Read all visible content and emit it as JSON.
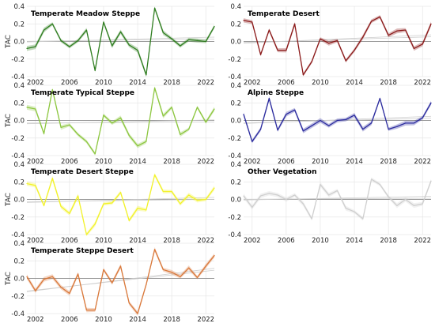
{
  "chart_data": [
    {
      "type": "line",
      "title": "Temperate Meadow Steppe",
      "ylabel": "TAC",
      "color": "#2e7d1f",
      "x": [
        2001,
        2002,
        2003,
        2004,
        2005,
        2006,
        2007,
        2008,
        2009,
        2010,
        2011,
        2012,
        2013,
        2014,
        2015,
        2016,
        2017,
        2018,
        2019,
        2020,
        2021,
        2022,
        2023
      ],
      "values": [
        -0.08,
        -0.06,
        0.13,
        0.2,
        0.01,
        -0.06,
        0.01,
        0.13,
        -0.33,
        0.22,
        -0.05,
        0.11,
        -0.04,
        -0.1,
        -0.38,
        0.38,
        0.1,
        0.03,
        -0.05,
        0.02,
        0.01,
        0.0,
        0.17
      ],
      "xlim": [
        2001,
        2023
      ],
      "ylim": [
        -0.4,
        0.4
      ],
      "xticks": [
        "2002",
        "2006",
        "2010",
        "2014",
        "2018",
        "2022"
      ],
      "yticks": [
        "0.4",
        "0.2",
        "0.0",
        "-0.2",
        "-0.4"
      ],
      "grid": true
    },
    {
      "type": "line",
      "title": "Temperate Desert",
      "ylabel": "",
      "color": "#8b1a1a",
      "x": [
        2001,
        2002,
        2003,
        2004,
        2005,
        2006,
        2007,
        2008,
        2009,
        2010,
        2011,
        2012,
        2013,
        2014,
        2015,
        2016,
        2017,
        2018,
        2019,
        2020,
        2021,
        2022,
        2023
      ],
      "values": [
        0.24,
        0.22,
        -0.15,
        0.13,
        -0.1,
        -0.1,
        0.2,
        -0.38,
        -0.23,
        0.03,
        -0.02,
        0.01,
        -0.22,
        -0.1,
        0.05,
        0.23,
        0.28,
        0.07,
        0.12,
        0.13,
        -0.08,
        -0.03,
        0.2
      ],
      "xlim": [
        2001,
        2023
      ],
      "ylim": [
        -0.4,
        0.4
      ],
      "xticks": [
        "2002",
        "2006",
        "2010",
        "2014",
        "2018",
        "2022"
      ],
      "yticks": [
        "0.4",
        "0.2",
        "0.0",
        "-0.2",
        "-0.4"
      ],
      "grid": true
    },
    {
      "type": "line",
      "title": "Temperate Typical Steppe",
      "ylabel": "TAC",
      "color": "#8cc63f",
      "x": [
        2001,
        2002,
        2003,
        2004,
        2005,
        2006,
        2007,
        2008,
        2009,
        2010,
        2011,
        2012,
        2013,
        2014,
        2015,
        2016,
        2017,
        2018,
        2019,
        2020,
        2021,
        2022,
        2023
      ],
      "values": [
        0.15,
        0.13,
        -0.15,
        0.35,
        -0.08,
        -0.05,
        -0.16,
        -0.24,
        -0.38,
        0.06,
        -0.03,
        0.03,
        -0.17,
        -0.29,
        -0.24,
        0.37,
        0.05,
        0.15,
        -0.16,
        -0.1,
        0.15,
        -0.02,
        0.13
      ],
      "xlim": [
        2001,
        2023
      ],
      "ylim": [
        -0.4,
        0.4
      ],
      "xticks": [
        "2002",
        "2006",
        "2010",
        "2014",
        "2018",
        "2022"
      ],
      "yticks": [
        "0.4",
        "0.2",
        "0.0",
        "-0.2",
        "-0.4"
      ],
      "grid": true
    },
    {
      "type": "line",
      "title": "Alpine Steppe",
      "ylabel": "",
      "color": "#2b2b9e",
      "x": [
        2001,
        2002,
        2003,
        2004,
        2005,
        2006,
        2007,
        2008,
        2009,
        2010,
        2011,
        2012,
        2013,
        2014,
        2015,
        2016,
        2017,
        2018,
        2019,
        2020,
        2021,
        2022,
        2023
      ],
      "values": [
        0.07,
        -0.24,
        -0.1,
        0.25,
        -0.11,
        0.07,
        0.12,
        -0.12,
        -0.06,
        0.0,
        -0.06,
        0.0,
        0.01,
        0.06,
        -0.1,
        -0.03,
        0.25,
        -0.1,
        -0.07,
        -0.03,
        -0.03,
        0.03,
        0.2
      ],
      "xlim": [
        2001,
        2023
      ],
      "ylim": [
        -0.4,
        0.4
      ],
      "xticks": [
        "2002",
        "2006",
        "2010",
        "2014",
        "2018",
        "2022"
      ],
      "yticks": [
        "0.4",
        "0.2",
        "0.0",
        "-0.2",
        "-0.4"
      ],
      "grid": true
    },
    {
      "type": "line",
      "title": "Temperate Desert Steppe",
      "ylabel": "TAC",
      "color": "#f2f22a",
      "x": [
        2001,
        2002,
        2003,
        2004,
        2005,
        2006,
        2007,
        2008,
        2009,
        2010,
        2011,
        2012,
        2013,
        2014,
        2015,
        2016,
        2017,
        2018,
        2019,
        2020,
        2021,
        2022,
        2023
      ],
      "values": [
        0.18,
        0.16,
        -0.07,
        0.24,
        -0.08,
        -0.16,
        0.04,
        -0.4,
        -0.28,
        -0.05,
        -0.04,
        0.08,
        -0.24,
        -0.1,
        -0.12,
        0.28,
        0.09,
        0.09,
        -0.05,
        0.05,
        -0.01,
        0.0,
        0.13
      ],
      "xlim": [
        2001,
        2023
      ],
      "ylim": [
        -0.4,
        0.4
      ],
      "xticks": [
        "2002",
        "2006",
        "2010",
        "2014",
        "2018",
        "2022"
      ],
      "yticks": [
        "0.4",
        "0.2",
        "0.0",
        "-0.2",
        "-0.4"
      ],
      "grid": true
    },
    {
      "type": "line",
      "title": "Other Vegetation",
      "ylabel": "",
      "color": "#cfcfcf",
      "x": [
        2001,
        2002,
        2003,
        2004,
        2005,
        2006,
        2007,
        2008,
        2009,
        2010,
        2011,
        2012,
        2013,
        2014,
        2015,
        2016,
        2017,
        2018,
        2019,
        2020,
        2021,
        2022,
        2023
      ],
      "values": [
        0.04,
        -0.09,
        0.04,
        0.07,
        0.05,
        0.0,
        0.05,
        -0.05,
        -0.22,
        0.17,
        0.05,
        0.1,
        -0.1,
        -0.14,
        -0.22,
        0.23,
        0.17,
        0.03,
        -0.07,
        0.0,
        -0.07,
        -0.05,
        0.21
      ],
      "xlim": [
        2001,
        2023
      ],
      "ylim": [
        -0.4,
        0.4
      ],
      "xticks": [
        "2002",
        "2006",
        "2010",
        "2014",
        "2018",
        "2022"
      ],
      "yticks": [
        "0.4",
        "0.2",
        "0.0",
        "-0.2",
        "-0.4"
      ],
      "grid": true
    },
    {
      "type": "line",
      "title": "Temperate Steppe Desert",
      "ylabel": "TAC",
      "color": "#d9783a",
      "x": [
        2001,
        2002,
        2003,
        2004,
        2005,
        2006,
        2007,
        2008,
        2009,
        2010,
        2011,
        2012,
        2013,
        2014,
        2015,
        2016,
        2017,
        2018,
        2019,
        2020,
        2021,
        2022,
        2023
      ],
      "values": [
        0.02,
        -0.14,
        -0.01,
        0.02,
        -0.1,
        -0.17,
        0.05,
        -0.36,
        -0.36,
        0.1,
        -0.05,
        0.14,
        -0.28,
        -0.4,
        -0.07,
        0.33,
        0.1,
        0.07,
        0.02,
        0.12,
        0.01,
        0.14,
        0.26
      ],
      "xlim": [
        2001,
        2023
      ],
      "ylim": [
        -0.4,
        0.4
      ],
      "xticks": [
        "2002",
        "2006",
        "2010",
        "2014",
        "2018",
        "2022"
      ],
      "yticks": [
        "0.4",
        "0.2",
        "0.0",
        "-0.2",
        "-0.4"
      ],
      "grid": true
    }
  ]
}
